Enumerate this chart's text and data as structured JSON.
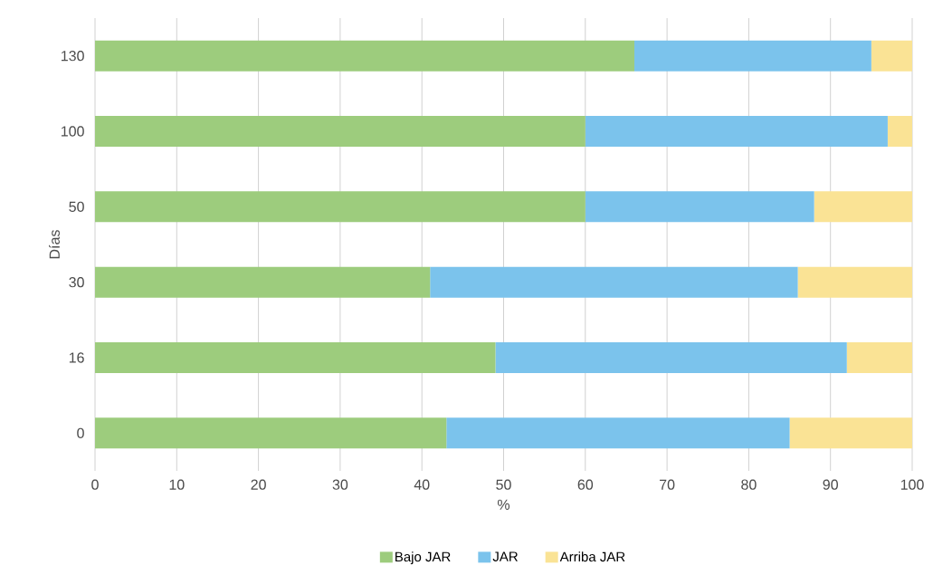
{
  "chart_data": {
    "type": "bar",
    "orientation": "horizontal",
    "stacked": true,
    "xlabel": "%",
    "ylabel": "Días",
    "categories": [
      "130",
      "100",
      "50",
      "30",
      "16",
      "0"
    ],
    "series": [
      {
        "name": "Bajo JAR",
        "color": "#9dcc7d",
        "values": [
          66,
          60,
          60,
          41,
          49,
          43
        ]
      },
      {
        "name": "JAR",
        "color": "#7bc3ec",
        "values": [
          29,
          37,
          28,
          45,
          43,
          42
        ]
      },
      {
        "name": "Arriba JAR",
        "color": "#fae395",
        "values": [
          5,
          3,
          12,
          14,
          8,
          15
        ]
      }
    ],
    "xlim": [
      0,
      100
    ],
    "xticks": [
      0,
      10,
      20,
      30,
      40,
      50,
      60,
      70,
      80,
      90,
      100
    ],
    "grid": "x",
    "legend": "bottom"
  }
}
